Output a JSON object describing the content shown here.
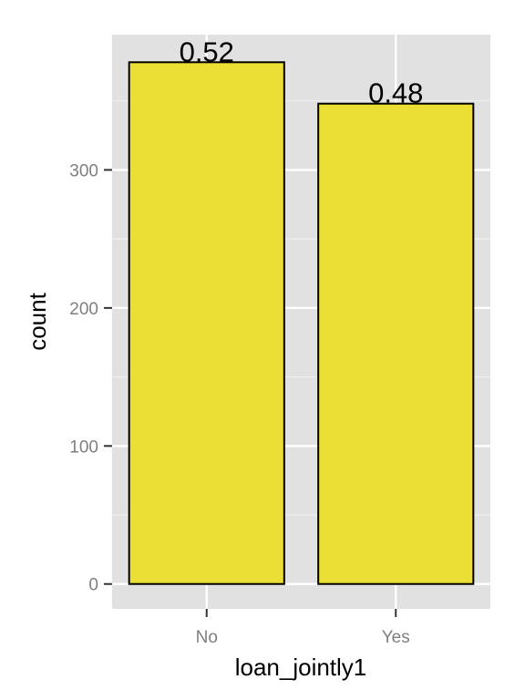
{
  "chart_data": {
    "type": "bar",
    "categories": [
      "No",
      "Yes"
    ],
    "values": [
      378,
      348
    ],
    "bar_labels": [
      "0.52",
      "0.48"
    ],
    "xlabel": "loan_jointly1",
    "ylabel": "count",
    "ylim": [
      -18,
      398
    ],
    "yticks": [
      0,
      100,
      200,
      300
    ],
    "ytick_labels": [
      "0",
      "100",
      "200",
      "300"
    ],
    "grid": true,
    "colors": {
      "bar_fill": "#ebdf35",
      "bar_stroke": "#000000",
      "panel_bg": "#e1e1e1",
      "grid_major": "#ffffff",
      "grid_minor": "#efefef",
      "tick_label": "#7f7f7f"
    }
  }
}
